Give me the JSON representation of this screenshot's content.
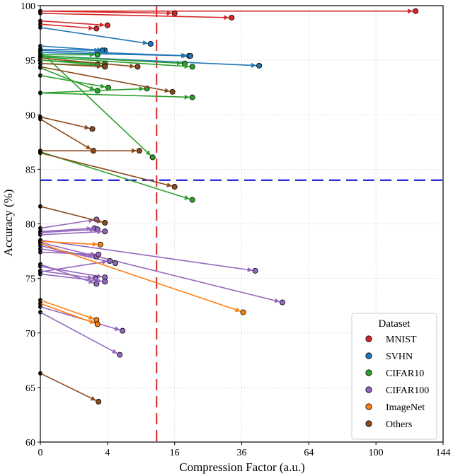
{
  "chart_data": {
    "type": "scatter",
    "title": "",
    "xlabel": "Compression Factor (a.u.)",
    "ylabel": "Accuracy (%)",
    "xscale": "sqrt",
    "xlim": [
      0,
      144
    ],
    "ylim": [
      60,
      100
    ],
    "xticks": [
      0,
      4,
      16,
      36,
      64,
      100,
      144
    ],
    "yticks": [
      60,
      65,
      70,
      75,
      80,
      85,
      90,
      95,
      100
    ],
    "grid": true,
    "legend": {
      "title": "Dataset",
      "placement": "lower-right"
    },
    "reference_lines": [
      {
        "orientation": "vertical",
        "x": 12,
        "color": "#d62728",
        "style": "dashed"
      },
      {
        "orientation": "horizontal",
        "y": 84,
        "color": "#0000dd",
        "style": "dashed"
      }
    ],
    "series": [
      {
        "name": "MNIST",
        "color": "#d62728",
        "arrows": [
          {
            "from": [
              0,
              99.5
            ],
            "to": [
              125,
              99.5
            ]
          },
          {
            "from": [
              0,
              99.5
            ],
            "to": [
              16,
              99.3
            ]
          },
          {
            "from": [
              0,
              99.3
            ],
            "to": [
              32.5,
              98.9
            ]
          },
          {
            "from": [
              0,
              98.6
            ],
            "to": [
              4,
              98.2
            ]
          },
          {
            "from": [
              0,
              98.3
            ],
            "to": [
              2.8,
              97.9
            ]
          }
        ]
      },
      {
        "name": "SVHN",
        "color": "#1f77b4",
        "arrows": [
          {
            "from": [
              0,
              98.0
            ],
            "to": [
              10.8,
              96.5
            ]
          },
          {
            "from": [
              0,
              96.3
            ],
            "to": [
              3.7,
              95.9
            ]
          },
          {
            "from": [
              0,
              96.0
            ],
            "to": [
              3.4,
              95.9
            ]
          },
          {
            "from": [
              0,
              95.9
            ],
            "to": [
              19.6,
              95.4
            ]
          },
          {
            "from": [
              0,
              95.7
            ],
            "to": [
              20,
              95.4
            ]
          },
          {
            "from": [
              0,
              95.4
            ],
            "to": [
              42.5,
              94.5
            ]
          }
        ]
      },
      {
        "name": "CIFAR10",
        "color": "#2ca02c",
        "arrows": [
          {
            "from": [
              0,
              95.5
            ],
            "to": [
              2.9,
              95.5
            ]
          },
          {
            "from": [
              0,
              95.4
            ],
            "to": [
              18.5,
              94.7
            ]
          },
          {
            "from": [
              0,
              95.3
            ],
            "to": [
              20.5,
              94.4
            ]
          },
          {
            "from": [
              0,
              95.0
            ],
            "to": [
              3.7,
              94.7
            ]
          },
          {
            "from": [
              0,
              95.0
            ],
            "to": [
              2.9,
              94.6
            ]
          },
          {
            "from": [
              0,
              94.7
            ],
            "to": [
              3.7,
              94.5
            ]
          },
          {
            "from": [
              0,
              95.8
            ],
            "to": [
              11.2,
              86.1
            ]
          },
          {
            "from": [
              0,
              93.6
            ],
            "to": [
              4.1,
              92.5
            ]
          },
          {
            "from": [
              0,
              94.3
            ],
            "to": [
              2.9,
              92.2
            ]
          },
          {
            "from": [
              0,
              92.0
            ],
            "to": [
              10.1,
              92.4
            ]
          },
          {
            "from": [
              0,
              92.0
            ],
            "to": [
              20.5,
              91.6
            ]
          },
          {
            "from": [
              0,
              86.6
            ],
            "to": [
              20.5,
              82.2
            ]
          }
        ]
      },
      {
        "name": "CIFAR100",
        "color": "#9467bd",
        "arrows": [
          {
            "from": [
              0,
              79.6
            ],
            "to": [
              2.8,
              80.4
            ]
          },
          {
            "from": [
              0,
              79.3
            ],
            "to": [
              2.6,
              79.6
            ]
          },
          {
            "from": [
              0,
              79.2
            ],
            "to": [
              2.9,
              79.5
            ]
          },
          {
            "from": [
              0,
              79.0
            ],
            "to": [
              3.7,
              79.3
            ]
          },
          {
            "from": [
              0,
              78.5
            ],
            "to": [
              41,
              75.7
            ]
          },
          {
            "from": [
              0,
              78.3
            ],
            "to": [
              52,
              72.8
            ]
          },
          {
            "from": [
              0,
              78.0
            ],
            "to": [
              5,
              76.4
            ]
          },
          {
            "from": [
              0,
              77.7
            ],
            "to": [
              2.8,
              77.0
            ]
          },
          {
            "from": [
              0,
              77.4
            ],
            "to": [
              3.0,
              77.2
            ]
          },
          {
            "from": [
              0,
              75.6
            ],
            "to": [
              4.3,
              76.6
            ]
          },
          {
            "from": [
              0,
              76.1
            ],
            "to": [
              3.7,
              75.1
            ]
          },
          {
            "from": [
              0,
              75.7
            ],
            "to": [
              2.7,
              75.0
            ]
          },
          {
            "from": [
              0,
              76.3
            ],
            "to": [
              2.8,
              74.5
            ]
          },
          {
            "from": [
              0,
              75.4
            ],
            "to": [
              3.7,
              74.7
            ]
          },
          {
            "from": [
              0,
              72.4
            ],
            "to": [
              6.0,
              70.2
            ]
          },
          {
            "from": [
              0,
              71.9
            ],
            "to": [
              5.6,
              68.0
            ]
          }
        ]
      },
      {
        "name": "ImageNet",
        "color": "#ff7f0e",
        "arrows": [
          {
            "from": [
              0,
              78.4
            ],
            "to": [
              3.2,
              78.1
            ]
          },
          {
            "from": [
              0,
              78.2
            ],
            "to": [
              36.5,
              71.9
            ]
          },
          {
            "from": [
              0,
              73.0
            ],
            "to": [
              2.8,
              71.2
            ]
          },
          {
            "from": [
              0,
              72.7
            ],
            "to": [
              2.9,
              70.8
            ]
          }
        ]
      },
      {
        "name": "Others",
        "color": "#8c4a1c",
        "arrows": [
          {
            "from": [
              0,
              95.2
            ],
            "to": [
              8.4,
              94.4
            ]
          },
          {
            "from": [
              0,
              94.7
            ],
            "to": [
              3.7,
              94.4
            ]
          },
          {
            "from": [
              0,
              94.4
            ],
            "to": [
              15.5,
              92.1
            ]
          },
          {
            "from": [
              0,
              89.8
            ],
            "to": [
              2.4,
              88.7
            ]
          },
          {
            "from": [
              0,
              89.6
            ],
            "to": [
              2.5,
              86.7
            ]
          },
          {
            "from": [
              0,
              86.7
            ],
            "to": [
              8.7,
              86.7
            ]
          },
          {
            "from": [
              0,
              86.5
            ],
            "to": [
              16,
              83.4
            ]
          },
          {
            "from": [
              0,
              81.6
            ],
            "to": [
              3.7,
              80.1
            ]
          },
          {
            "from": [
              0,
              66.3
            ],
            "to": [
              3.0,
              63.7
            ]
          }
        ]
      }
    ]
  }
}
